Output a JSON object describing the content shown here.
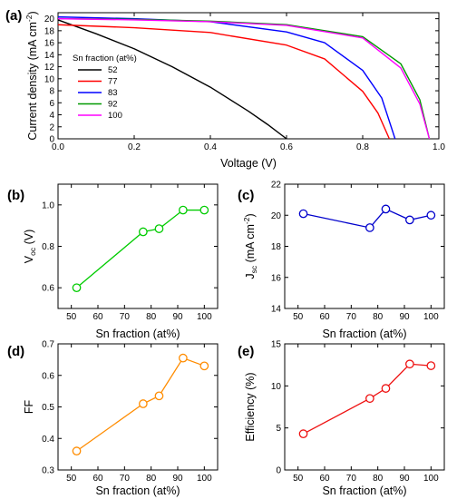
{
  "chart_data": [
    {
      "panel": "(a)",
      "type": "line",
      "xlabel": "Voltage (V)",
      "ylabel_main": "Current density (mA cm",
      "ylabel_sup": "-2",
      "ylabel_tail": ")",
      "xlim": [
        0.0,
        1.0
      ],
      "ylim": [
        0,
        21
      ],
      "xticks": [
        0.0,
        0.2,
        0.4,
        0.6,
        0.8,
        1.0
      ],
      "xtick_labels": [
        "0.0",
        "0.2",
        "0.4",
        "0.6",
        "0.8",
        "1.0"
      ],
      "yticks": [
        0,
        2,
        4,
        6,
        8,
        10,
        12,
        14,
        16,
        18,
        20
      ],
      "ytick_labels": [
        "0",
        "2",
        "4",
        "6",
        "8",
        "10",
        "12",
        "14",
        "16",
        "18",
        "20"
      ],
      "legend_title": "Sn fraction (at%)",
      "legend_position": "left",
      "series": [
        {
          "name": "52",
          "color": "#000000",
          "x": [
            0.0,
            0.1,
            0.2,
            0.3,
            0.4,
            0.5,
            0.55,
            0.6
          ],
          "y": [
            19.8,
            17.5,
            15.0,
            12.0,
            8.6,
            4.6,
            2.4,
            0.0
          ]
        },
        {
          "name": "77",
          "color": "#ff0000",
          "x": [
            0.0,
            0.2,
            0.4,
            0.6,
            0.7,
            0.8,
            0.84,
            0.87
          ],
          "y": [
            19.0,
            18.5,
            17.7,
            15.6,
            13.3,
            7.9,
            4.3,
            0.0
          ]
        },
        {
          "name": "83",
          "color": "#0000ff",
          "x": [
            0.0,
            0.2,
            0.4,
            0.6,
            0.7,
            0.8,
            0.85,
            0.885
          ],
          "y": [
            20.3,
            20.0,
            19.5,
            17.8,
            16.0,
            11.4,
            6.8,
            0.0
          ]
        },
        {
          "name": "92",
          "color": "#009900",
          "x": [
            0.0,
            0.2,
            0.4,
            0.6,
            0.8,
            0.9,
            0.95,
            0.975
          ],
          "y": [
            20.0,
            19.9,
            19.6,
            19.0,
            17.0,
            12.5,
            6.5,
            0.0
          ]
        },
        {
          "name": "100",
          "color": "#ff00ff",
          "x": [
            0.0,
            0.2,
            0.4,
            0.6,
            0.8,
            0.9,
            0.95,
            0.975
          ],
          "y": [
            20.0,
            19.8,
            19.5,
            18.9,
            16.8,
            11.8,
            5.8,
            0.0
          ]
        }
      ]
    },
    {
      "panel": "(b)",
      "type": "line",
      "color": "#00cc00",
      "xlabel": "Sn fraction (at%)",
      "ylabel_main": "V",
      "ylabel_sub": "oc",
      "ylabel_tail": " (V)",
      "xlim": [
        45,
        105
      ],
      "ylim": [
        0.5,
        1.1
      ],
      "xticks": [
        50,
        60,
        70,
        80,
        90,
        100
      ],
      "xtick_labels": [
        "50",
        "60",
        "70",
        "80",
        "90",
        "100"
      ],
      "yticks": [
        0.6,
        0.8,
        1.0
      ],
      "ytick_labels": [
        "0.6",
        "0.8",
        "1.0"
      ],
      "x": [
        52,
        77,
        83,
        92,
        100
      ],
      "y": [
        0.6,
        0.87,
        0.885,
        0.975,
        0.975
      ]
    },
    {
      "panel": "(c)",
      "type": "line",
      "color": "#0000cc",
      "xlabel": "Sn fraction (at%)",
      "ylabel_main": "J",
      "ylabel_sub": "sc",
      "ylabel_tail": " (mA cm",
      "ylabel_sup": "-2",
      "ylabel_end": ")",
      "xlim": [
        45,
        105
      ],
      "ylim": [
        14,
        22
      ],
      "xticks": [
        50,
        60,
        70,
        80,
        90,
        100
      ],
      "xtick_labels": [
        "50",
        "60",
        "70",
        "80",
        "90",
        "100"
      ],
      "yticks": [
        14,
        16,
        18,
        20,
        22
      ],
      "ytick_labels": [
        "14",
        "16",
        "18",
        "20",
        "22"
      ],
      "x": [
        52,
        77,
        83,
        92,
        100
      ],
      "y": [
        20.1,
        19.2,
        20.4,
        19.7,
        20.0
      ]
    },
    {
      "panel": "(d)",
      "type": "line",
      "color": "#ff8c00",
      "xlabel": "Sn fraction (at%)",
      "ylabel_main": "FF",
      "xlim": [
        45,
        105
      ],
      "ylim": [
        0.3,
        0.7
      ],
      "xticks": [
        50,
        60,
        70,
        80,
        90,
        100
      ],
      "xtick_labels": [
        "50",
        "60",
        "70",
        "80",
        "90",
        "100"
      ],
      "yticks": [
        0.3,
        0.4,
        0.5,
        0.6,
        0.7
      ],
      "ytick_labels": [
        "0.3",
        "0.4",
        "0.5",
        "0.6",
        "0.7"
      ],
      "x": [
        52,
        77,
        83,
        92,
        100
      ],
      "y": [
        0.36,
        0.51,
        0.535,
        0.655,
        0.63
      ]
    },
    {
      "panel": "(e)",
      "type": "line",
      "color": "#ee1111",
      "xlabel": "Sn fraction (at%)",
      "ylabel_main": "Efficiency (%)",
      "xlim": [
        45,
        105
      ],
      "ylim": [
        0,
        15
      ],
      "xticks": [
        50,
        60,
        70,
        80,
        90,
        100
      ],
      "xtick_labels": [
        "50",
        "60",
        "70",
        "80",
        "90",
        "100"
      ],
      "yticks": [
        0,
        5,
        10,
        15
      ],
      "ytick_labels": [
        "0",
        "5",
        "10",
        "15"
      ],
      "x": [
        52,
        77,
        83,
        92,
        100
      ],
      "y": [
        4.3,
        8.5,
        9.7,
        12.6,
        12.4
      ]
    }
  ]
}
